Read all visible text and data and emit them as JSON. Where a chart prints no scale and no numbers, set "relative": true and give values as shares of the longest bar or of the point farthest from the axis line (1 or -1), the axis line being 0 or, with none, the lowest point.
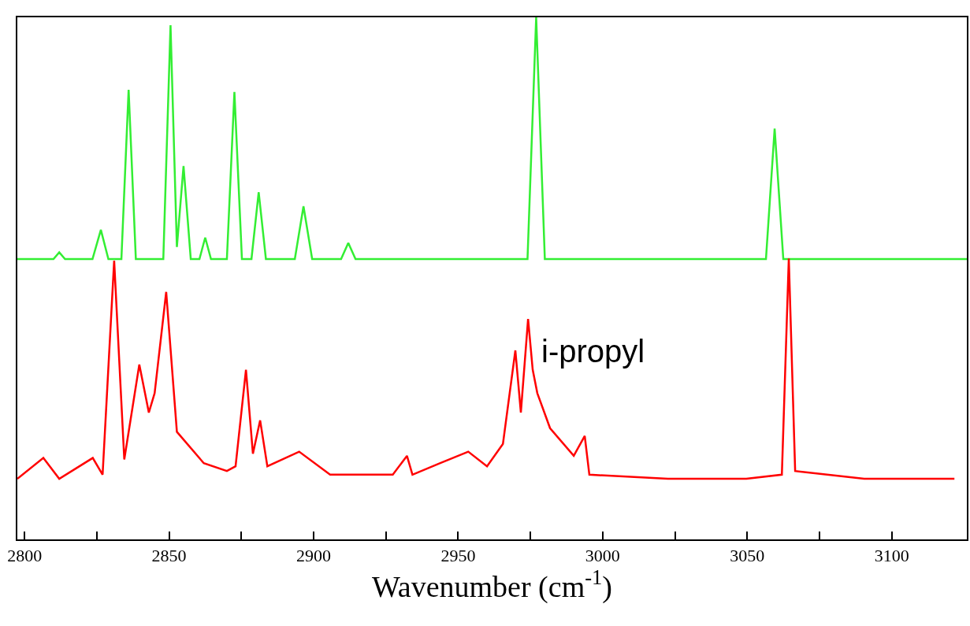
{
  "chart_data": {
    "type": "line",
    "relative": true,
    "xlabel": "Wavenumber (cm$^{-1}$)",
    "xlim": [
      2797.5,
      3126
    ],
    "xticks": [
      2800,
      {
        "value": 2825,
        "label": null
      },
      2850,
      {
        "value": 2875,
        "label": null
      },
      2900,
      {
        "value": 2925,
        "label": null
      },
      2950,
      {
        "value": 2975,
        "label": null
      },
      3000,
      {
        "value": 3025,
        "label": null
      },
      3050,
      {
        "value": 3075,
        "label": null
      },
      3100
    ],
    "tick_labels": "x",
    "annotations": [
      "i-propyl"
    ],
    "series": [
      {
        "color": "#33ee33",
        "x": [
          2797.5,
          2810,
          2812,
          2814,
          2823.5,
          2826.4,
          2829,
          2833.5,
          2836,
          2838.5,
          2848,
          2850.5,
          2852.7,
          2855,
          2857.5,
          2860.5,
          2862.5,
          2864.5,
          2870,
          2872.6,
          2875.2,
          2878.5,
          2881,
          2883.5,
          2893.5,
          2896.5,
          2899.5,
          2909.5,
          2912,
          2914.5,
          2974,
          2977,
          2980,
          3056.5,
          3059.5,
          3062.5,
          3126
        ],
        "values": [
          0.537,
          0.537,
          0.55,
          0.537,
          0.537,
          0.593,
          0.537,
          0.537,
          0.861,
          0.537,
          0.537,
          0.985,
          0.56,
          0.715,
          0.537,
          0.537,
          0.578,
          0.537,
          0.537,
          0.857,
          0.537,
          0.537,
          0.665,
          0.537,
          0.537,
          0.638,
          0.537,
          0.537,
          0.568,
          0.537,
          0.537,
          1.0,
          0.537,
          0.537,
          0.787,
          0.537,
          0.537
        ]
      },
      {
        "color": "#ff0000",
        "x": [
          2797.5,
          2806.5,
          2812,
          2823.6,
          2827,
          2831,
          2834.5,
          2839.7,
          2843,
          2845,
          2849,
          2852.7,
          2862,
          2870,
          2873,
          2876.6,
          2879,
          2881.5,
          2884,
          2895,
          2905.7,
          2927.4,
          2932.3,
          2934.2,
          2943.8,
          2953.5,
          2960,
          2965.5,
          2969.8,
          2971.7,
          2974.2,
          2975.8,
          2977.4,
          2981.8,
          2990,
          2993.8,
          2995.4,
          3022.6,
          3049.7,
          3062,
          3064.4,
          3066.6,
          3090.5,
          3121.7
        ],
        "values": [
          0.116,
          0.156,
          0.116,
          0.156,
          0.124,
          0.534,
          0.153,
          0.335,
          0.243,
          0.28,
          0.474,
          0.206,
          0.146,
          0.131,
          0.14,
          0.325,
          0.164,
          0.228,
          0.14,
          0.168,
          0.124,
          0.124,
          0.16,
          0.124,
          0.146,
          0.168,
          0.14,
          0.183,
          0.362,
          0.243,
          0.422,
          0.325,
          0.28,
          0.213,
          0.16,
          0.198,
          0.124,
          0.116,
          0.116,
          0.124,
          0.538,
          0.131,
          0.116,
          0.116
        ]
      }
    ]
  }
}
